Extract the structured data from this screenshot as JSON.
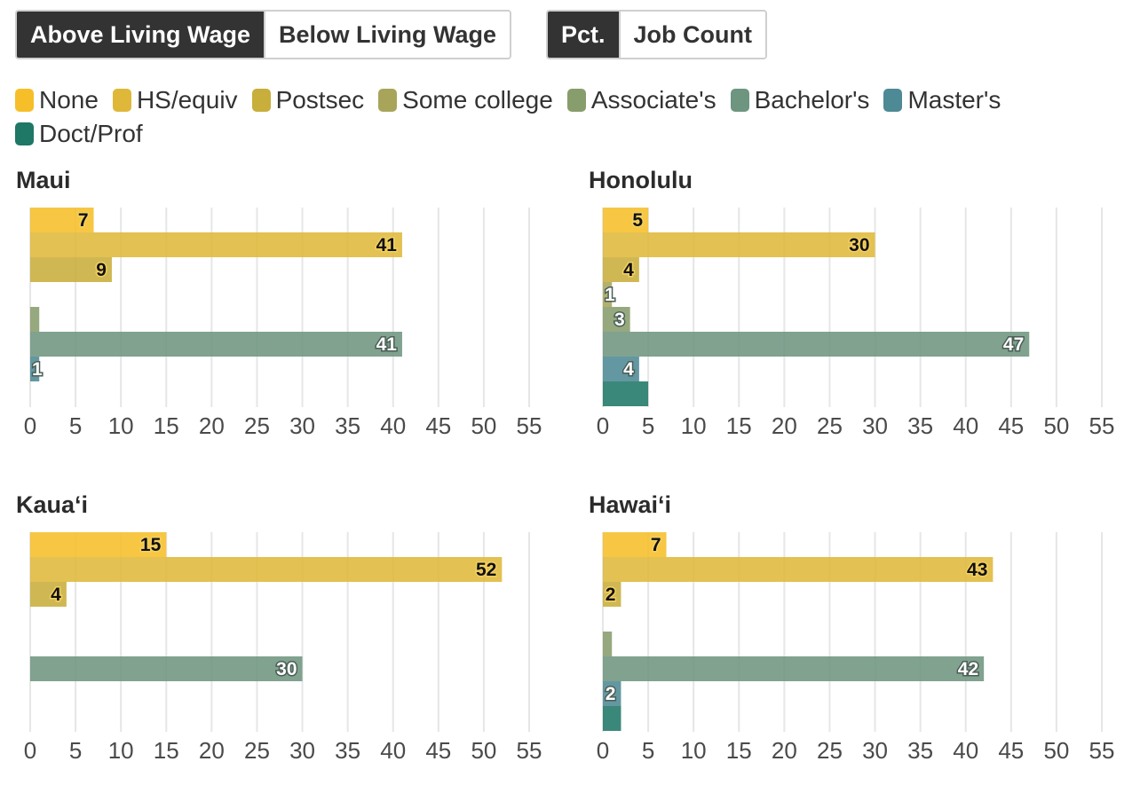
{
  "toggles": {
    "wage": {
      "options": [
        "Above Living Wage",
        "Below Living Wage"
      ],
      "selected": "Above Living Wage"
    },
    "metric": {
      "options": [
        "Pct.",
        "Job Count"
      ],
      "selected": "Pct."
    }
  },
  "legend": [
    {
      "label": "None",
      "color": "#f6bf2a"
    },
    {
      "label": "HS/equiv",
      "color": "#dfb83a"
    },
    {
      "label": "Postsec",
      "color": "#c8ae3b"
    },
    {
      "label": "Some college",
      "color": "#a8a55b"
    },
    {
      "label": "Associate's",
      "color": "#889d6c"
    },
    {
      "label": "Bachelor's",
      "color": "#6e9580"
    },
    {
      "label": "Master's",
      "color": "#4d8a95"
    },
    {
      "label": "Doct/Prof",
      "color": "#1f7766"
    }
  ],
  "chart_data": [
    {
      "type": "bar",
      "orientation": "horizontal",
      "title": "Maui",
      "categories": [
        "None",
        "HS/equiv",
        "Postsec",
        "Some college",
        "Associate's",
        "Bachelor's",
        "Master's",
        "Doct/Prof"
      ],
      "values": [
        7,
        41,
        9,
        0,
        1,
        41,
        1,
        0
      ],
      "labels": [
        "7",
        "41",
        "9",
        "",
        "",
        "41",
        "1",
        ""
      ],
      "xlim": [
        0,
        55
      ],
      "xticks": [
        "0",
        "5",
        "10",
        "15",
        "20",
        "25",
        "30",
        "35",
        "40",
        "45",
        "50",
        "55"
      ],
      "grid": true
    },
    {
      "type": "bar",
      "orientation": "horizontal",
      "title": "Honolulu",
      "categories": [
        "None",
        "HS/equiv",
        "Postsec",
        "Some college",
        "Associate's",
        "Bachelor's",
        "Master's",
        "Doct/Prof"
      ],
      "values": [
        5,
        30,
        4,
        1,
        3,
        47,
        4,
        5
      ],
      "labels": [
        "5",
        "30",
        "4",
        "1",
        "3",
        "47",
        "4",
        ""
      ],
      "xlim": [
        0,
        55
      ],
      "xticks": [
        "0",
        "5",
        "10",
        "15",
        "20",
        "25",
        "30",
        "35",
        "40",
        "45",
        "50",
        "55"
      ],
      "grid": true
    },
    {
      "type": "bar",
      "orientation": "horizontal",
      "title": "Kaua‘i",
      "categories": [
        "None",
        "HS/equiv",
        "Postsec",
        "Some college",
        "Associate's",
        "Bachelor's",
        "Master's",
        "Doct/Prof"
      ],
      "values": [
        15,
        52,
        4,
        0,
        0,
        30,
        0,
        0
      ],
      "labels": [
        "15",
        "52",
        "4",
        "",
        "",
        "30",
        "",
        ""
      ],
      "xlim": [
        0,
        55
      ],
      "xticks": [
        "0",
        "5",
        "10",
        "15",
        "20",
        "25",
        "30",
        "35",
        "40",
        "45",
        "50",
        "55"
      ],
      "grid": true
    },
    {
      "type": "bar",
      "orientation": "horizontal",
      "title": "Hawai‘i",
      "categories": [
        "None",
        "HS/equiv",
        "Postsec",
        "Some college",
        "Associate's",
        "Bachelor's",
        "Master's",
        "Doct/Prof"
      ],
      "values": [
        7,
        43,
        2,
        0,
        1,
        42,
        2,
        2
      ],
      "labels": [
        "7",
        "43",
        "2",
        "",
        "",
        "42",
        "2",
        ""
      ],
      "xlim": [
        0,
        55
      ],
      "xticks": [
        "0",
        "5",
        "10",
        "15",
        "20",
        "25",
        "30",
        "35",
        "40",
        "45",
        "50",
        "55"
      ],
      "grid": true
    }
  ],
  "label_colors": [
    "#111111",
    "#111111",
    "#111111",
    "#ffffff",
    "#ffffff",
    "#ffffff",
    "#ffffff",
    "#ffffff"
  ]
}
